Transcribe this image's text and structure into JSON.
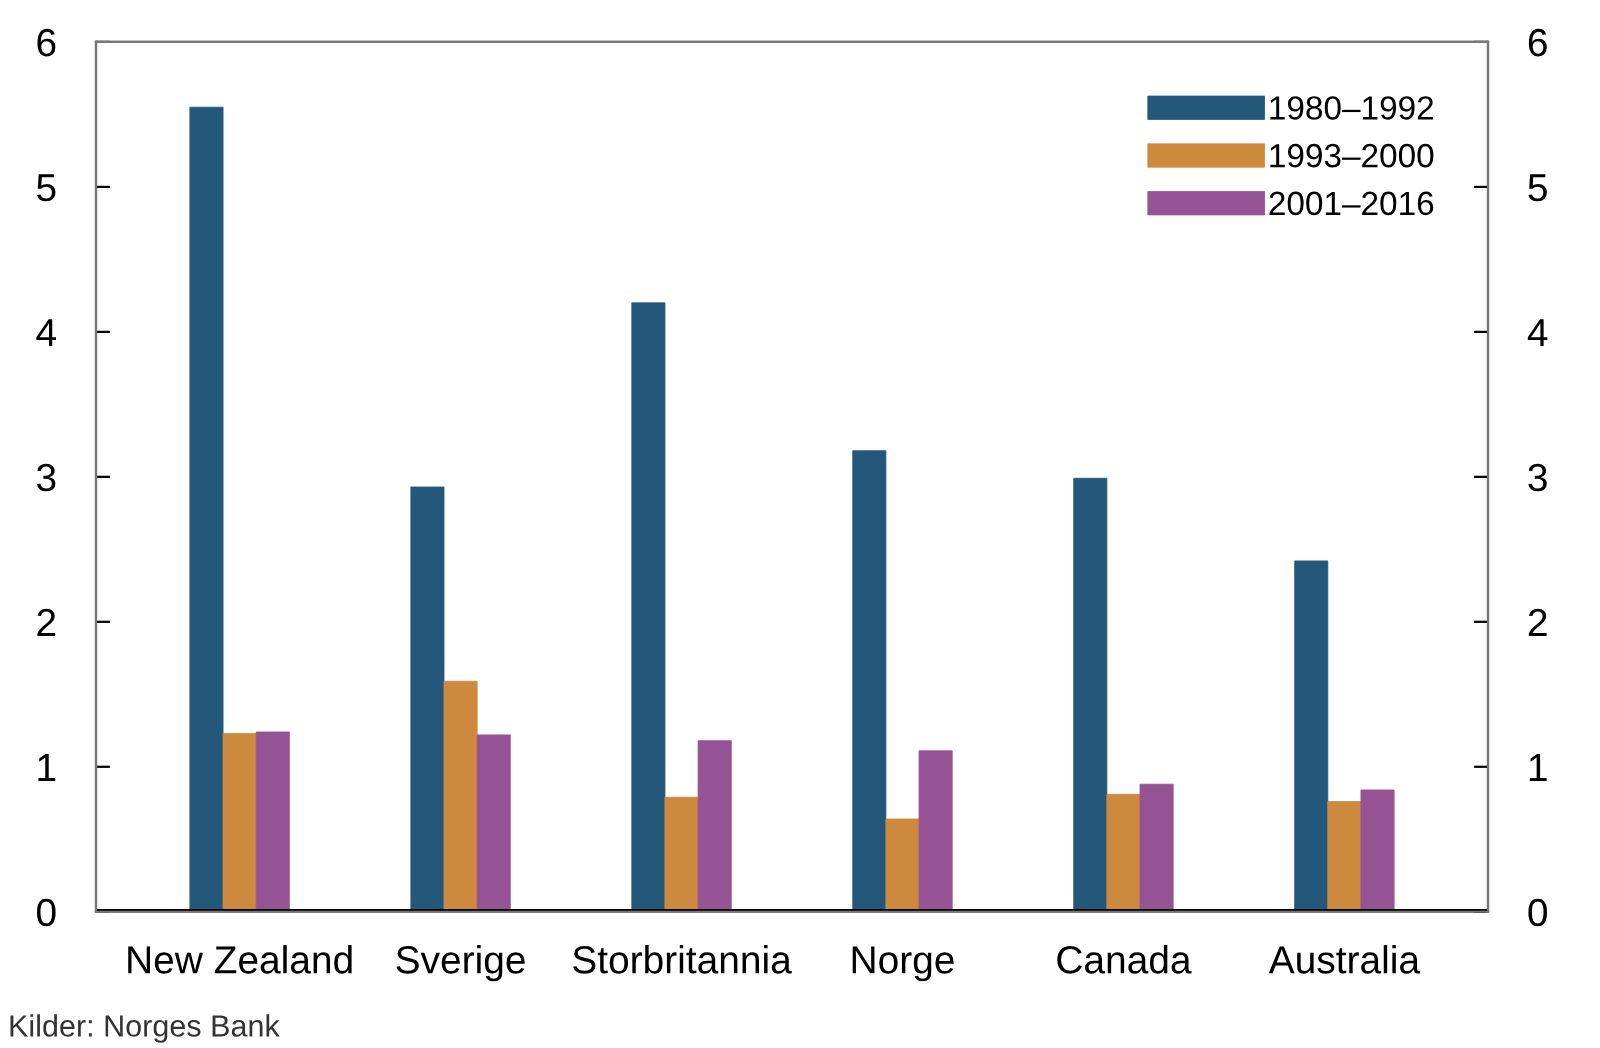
{
  "chart_data": {
    "type": "bar",
    "categories": [
      "New Zealand",
      "Sverige",
      "Storbritannia",
      "Norge",
      "Canada",
      "Australia"
    ],
    "series": [
      {
        "name": "1980–1992",
        "color": "#24587a",
        "values": [
          5.55,
          2.93,
          4.2,
          3.18,
          2.99,
          2.42
        ]
      },
      {
        "name": "1993–2000",
        "color": "#cd8a3e",
        "values": [
          1.23,
          1.59,
          0.79,
          0.64,
          0.81,
          0.76
        ]
      },
      {
        "name": "2001–2016",
        "color": "#955295",
        "values": [
          1.24,
          1.22,
          1.18,
          1.11,
          0.88,
          0.84
        ]
      }
    ],
    "ylim": [
      0,
      6
    ],
    "yticks": [
      0,
      1,
      2,
      3,
      4,
      5,
      6
    ],
    "y2lim": [
      0,
      6
    ],
    "y2ticks": [
      0,
      1,
      2,
      3,
      4,
      5,
      6
    ],
    "legend": "top right",
    "grid": false,
    "annotations": [
      "Kilder: Norges Bank"
    ]
  }
}
